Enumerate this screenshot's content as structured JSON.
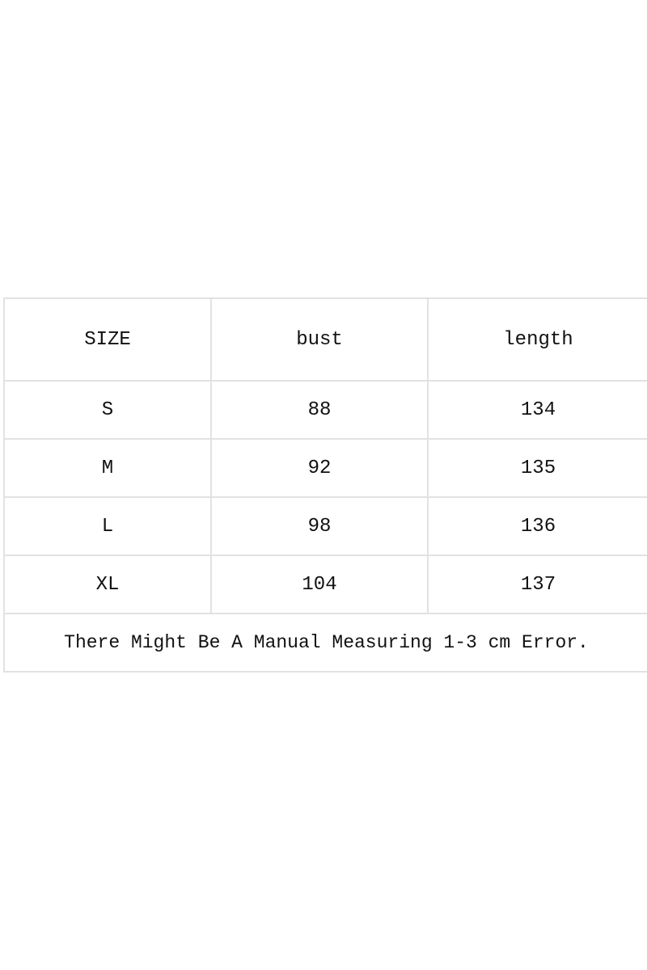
{
  "table": {
    "headers": [
      "SIZE",
      "bust",
      "length"
    ],
    "rows": [
      [
        "S",
        "88",
        "134"
      ],
      [
        "M",
        "92",
        "135"
      ],
      [
        "L",
        "98",
        "136"
      ],
      [
        "XL",
        "104",
        "137"
      ]
    ],
    "note": "There Might Be A Manual Measuring 1-3 cm Error."
  }
}
